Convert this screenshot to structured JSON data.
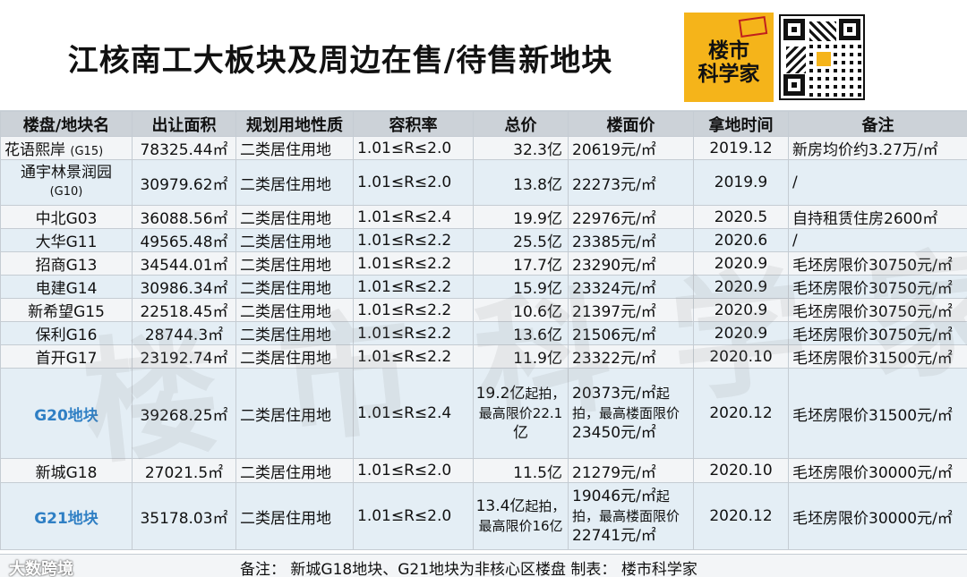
{
  "title": "江核南工大板块及周边在售/待售新地块",
  "logo": {
    "line1": "楼市",
    "line2": "科学家"
  },
  "columns": [
    "楼盘/地块名",
    "出让面积",
    "规划用地性质",
    "容积率",
    "总价",
    "楼面价",
    "拿地时间",
    "备注"
  ],
  "rows": [
    {
      "name": "花语熙岸",
      "code": "(G15)",
      "area": "78325.44㎡",
      "use": "二类居住用地",
      "far": "1.01≤R≤2.0",
      "price": "32.3亿",
      "unit": "20619元/㎡",
      "date": "2019.12",
      "note": "新房均价约3.27万/㎡"
    },
    {
      "name": "通宇林景润园",
      "code": "(G10)",
      "area": "30979.62㎡",
      "use": "二类居住用地",
      "far": "1.01≤R≤2.0",
      "price": "13.8亿",
      "unit": "22273元/㎡",
      "date": "2019.9",
      "note": "/"
    },
    {
      "name": "中北G03",
      "area": "36088.56㎡",
      "use": "二类居住用地",
      "far": "1.01≤R≤2.4",
      "price": "19.9亿",
      "unit": "22976元/㎡",
      "date": "2020.5",
      "note": "自持租赁住房2600㎡"
    },
    {
      "name": "大华G11",
      "area": "49565.48㎡",
      "use": "二类居住用地",
      "far": "1.01≤R≤2.2",
      "price": "25.5亿",
      "unit": "23385元/㎡",
      "date": "2020.6",
      "note": "/"
    },
    {
      "name": "招商G13",
      "area": "34544.01㎡",
      "use": "二类居住用地",
      "far": "1.01≤R≤2.2",
      "price": "17.7亿",
      "unit": "23290元/㎡",
      "date": "2020.9",
      "note": "毛坯房限价30750元/㎡"
    },
    {
      "name": "电建G14",
      "area": "30986.34㎡",
      "use": "二类居住用地",
      "far": "1.01≤R≤2.2",
      "price": "15.9亿",
      "unit": "23324元/㎡",
      "date": "2020.9",
      "note": "毛坯房限价30750元/㎡"
    },
    {
      "name": "新希望G15",
      "area": "22518.45㎡",
      "use": "二类居住用地",
      "far": "1.01≤R≤2.2",
      "price": "10.6亿",
      "unit": "21397元/㎡",
      "date": "2020.9",
      "note": "毛坯房限价30750元/㎡"
    },
    {
      "name": "保利G16",
      "area": "28744.3㎡",
      "use": "二类居住用地",
      "far": "1.01≤R≤2.2",
      "price": "13.6亿",
      "unit": "21506元/㎡",
      "date": "2020.9",
      "note": "毛坯房限价30750元/㎡"
    },
    {
      "name": "首开G17",
      "area": "23192.74㎡",
      "use": "二类居住用地",
      "far": "1.01≤R≤2.2",
      "price": "11.9亿",
      "unit": "23322元/㎡",
      "date": "2020.10",
      "note": "毛坯房限价31500元/㎡"
    },
    {
      "name": "G20地块",
      "area": "39268.25㎡",
      "use": "二类居住用地",
      "far": "1.01≤R≤2.4",
      "price_a": "19.2亿",
      "price_b": "起拍，",
      "price_c": "最高限价22.1",
      "price_d": "亿",
      "unit_a": "20373元/㎡",
      "unit_b": "起",
      "unit_c": "拍，最高楼面限价",
      "unit_d": "23450元/㎡",
      "date": "2020.12",
      "note": "毛坯房限价31500元/㎡"
    },
    {
      "name": "新城G18",
      "area": "27021.5㎡",
      "use": "二类居住用地",
      "far": "1.01≤R≤2.0",
      "price": "11.5亿",
      "unit": "21279元/㎡",
      "date": "2020.10",
      "note": "毛坯房限价30000元/㎡"
    },
    {
      "name": "G21地块",
      "area": "35178.03㎡",
      "use": "二类居住用地",
      "far": "1.01≤R≤2.0",
      "price_a": "13.4亿",
      "price_b": "起拍，",
      "price_c": "最高限价16亿",
      "unit_a": "19046元/㎡",
      "unit_b": "起",
      "unit_c": "拍，最高楼面限价",
      "unit_d": "22741元/㎡",
      "date": "2020.12",
      "note": "毛坯房限价30000元/㎡"
    }
  ],
  "footer": "备注：  新城G18地块、G21地块为非核心区楼盘   制表：  楼市科学家",
  "brand": "大数跨境",
  "watermark": "楼市科学家"
}
